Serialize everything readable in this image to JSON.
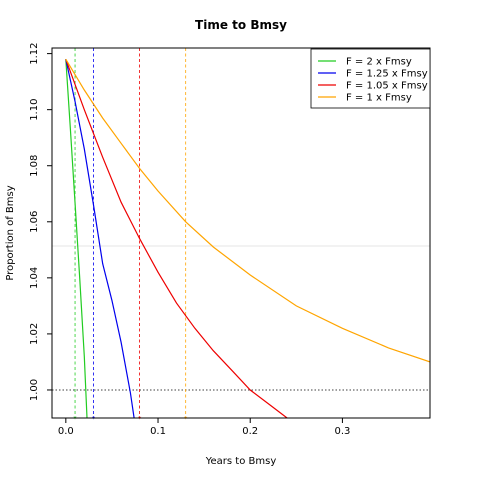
{
  "chart_data": {
    "type": "line",
    "title": "Time to Bmsy",
    "xlabel": "Years to Bmsy",
    "ylabel": "Proportion of Bmsy",
    "xlim": [
      -0.015,
      0.395
    ],
    "ylim": [
      0.99,
      1.122
    ],
    "x_ticks": [
      0.0,
      0.1,
      0.2,
      0.3
    ],
    "x_tick_labels": [
      "0.0",
      "0.1",
      "0.2",
      "0.3"
    ],
    "y_ticks": [
      1.0,
      1.02,
      1.04,
      1.06,
      1.08,
      1.1,
      1.12
    ],
    "y_tick_labels": [
      "1.00",
      "1.02",
      "1.04",
      "1.06",
      "1.08",
      "1.10",
      "1.12"
    ],
    "grid": false,
    "legend_position": "top-right",
    "reference_line_y": 1.0,
    "series": [
      {
        "name": "F = 2 x Fmsy",
        "color": "#22cc22",
        "x": [
          0.0,
          0.005,
          0.01,
          0.015,
          0.02,
          0.023
        ],
        "y": [
          1.118,
          1.093,
          1.067,
          1.04,
          1.012,
          0.99
        ],
        "time_to_bmsy": 0.01
      },
      {
        "name": "F = 1.25 x Fmsy",
        "color": "#0000ee",
        "x": [
          0.0,
          0.01,
          0.02,
          0.03,
          0.04,
          0.05,
          0.06,
          0.07,
          0.074
        ],
        "y": [
          1.118,
          1.103,
          1.086,
          1.066,
          1.045,
          1.032,
          1.017,
          0.999,
          0.99
        ],
        "time_to_bmsy": 0.03
      },
      {
        "name": "F = 1.05 x Fmsy",
        "color": "#ee0000",
        "x": [
          0.0,
          0.02,
          0.04,
          0.06,
          0.08,
          0.1,
          0.12,
          0.14,
          0.16,
          0.18,
          0.2,
          0.22,
          0.24
        ],
        "y": [
          1.118,
          1.1,
          1.083,
          1.067,
          1.054,
          1.042,
          1.031,
          1.022,
          1.014,
          1.007,
          1.0,
          0.995,
          0.99
        ],
        "time_to_bmsy": 0.08
      },
      {
        "name": "F = 1 x Fmsy",
        "color": "#ffa500",
        "x": [
          0.0,
          0.02,
          0.04,
          0.06,
          0.08,
          0.1,
          0.13,
          0.16,
          0.2,
          0.25,
          0.3,
          0.35,
          0.395
        ],
        "y": [
          1.118,
          1.107,
          1.097,
          1.088,
          1.079,
          1.071,
          1.06,
          1.051,
          1.041,
          1.03,
          1.022,
          1.015,
          1.01
        ],
        "time_to_bmsy": 0.13
      }
    ]
  }
}
